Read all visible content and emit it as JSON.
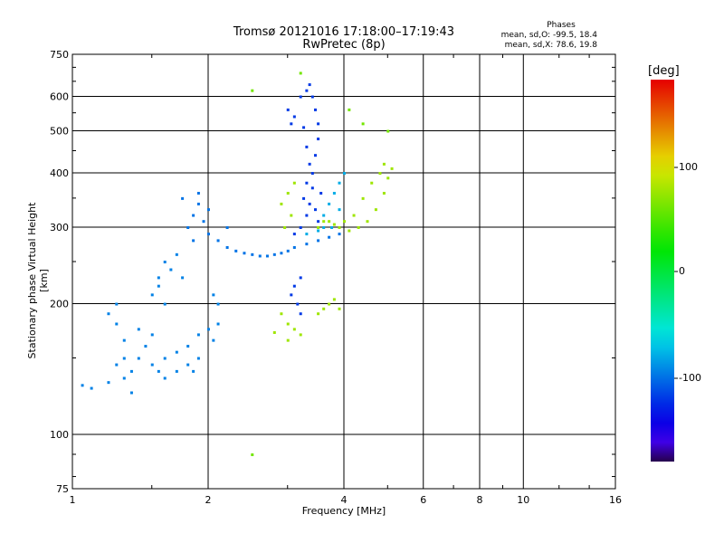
{
  "title_line1": "Tromsø 20121016 17:18:00–17:19:43",
  "title_line2": "RwPretec (8p)",
  "stats": {
    "heading": "Phases",
    "line_o": "mean, sd,O: -99.5, 18.4",
    "line_x": "mean, sd,X:  78.6, 19.8"
  },
  "colorbar": {
    "unit": "[deg]",
    "ticks": [
      "100",
      "0",
      "-100"
    ],
    "range": [
      -180,
      180
    ]
  },
  "chart_data": {
    "type": "scatter",
    "title": "Tromsø 20121016 17:18:00–17:19:43",
    "subtitle": "RwPretec (8p)",
    "xlabel": "Frequency [MHz]",
    "ylabel": "Stationary phase Virtual Height [km]",
    "xscale": "log",
    "yscale": "log",
    "xlim": [
      1,
      16
    ],
    "ylim": [
      75,
      750
    ],
    "x_ticks": [
      "1",
      "2",
      "4",
      "6",
      "8",
      "10",
      "16"
    ],
    "y_ticks": [
      "75",
      "100",
      "200",
      "300",
      "400",
      "500",
      "600",
      "750"
    ],
    "x_grid": [
      2,
      4,
      6,
      8,
      10
    ],
    "y_grid": [
      100,
      200,
      300,
      400,
      500,
      600
    ],
    "grid": true,
    "color_scale": "phase (deg), rainbow from -180 (black/purple) to 180 (red)",
    "series": [
      {
        "phase": -95,
        "points": [
          [
            1.05,
            130
          ],
          [
            1.1,
            128
          ],
          [
            1.2,
            132
          ],
          [
            1.3,
            135
          ],
          [
            1.35,
            140
          ],
          [
            1.4,
            150
          ],
          [
            1.5,
            145
          ],
          [
            1.55,
            140
          ],
          [
            1.6,
            150
          ],
          [
            1.7,
            155
          ],
          [
            1.8,
            160
          ],
          [
            1.9,
            170
          ],
          [
            2.0,
            175
          ],
          [
            2.05,
            165
          ],
          [
            2.1,
            180
          ],
          [
            1.45,
            160
          ],
          [
            1.5,
            170
          ],
          [
            1.4,
            175
          ],
          [
            1.3,
            165
          ],
          [
            1.25,
            180
          ],
          [
            1.2,
            190
          ],
          [
            1.25,
            200
          ],
          [
            1.5,
            210
          ],
          [
            1.55,
            230
          ],
          [
            1.6,
            250
          ],
          [
            1.65,
            240
          ],
          [
            1.7,
            260
          ],
          [
            1.75,
            230
          ],
          [
            1.6,
            200
          ],
          [
            1.55,
            220
          ],
          [
            1.3,
            150
          ],
          [
            1.35,
            125
          ],
          [
            1.25,
            145
          ],
          [
            1.6,
            135
          ],
          [
            1.7,
            140
          ],
          [
            1.8,
            145
          ],
          [
            2.1,
            200
          ],
          [
            2.05,
            210
          ],
          [
            1.9,
            150
          ],
          [
            1.85,
            140
          ]
        ]
      },
      {
        "phase": -100,
        "points": [
          [
            1.8,
            300
          ],
          [
            1.85,
            320
          ],
          [
            1.9,
            340
          ],
          [
            1.95,
            310
          ],
          [
            2.0,
            290
          ],
          [
            2.1,
            280
          ],
          [
            2.2,
            270
          ],
          [
            2.3,
            265
          ],
          [
            2.5,
            260
          ],
          [
            2.7,
            258
          ],
          [
            2.9,
            262
          ],
          [
            3.1,
            270
          ],
          [
            3.3,
            275
          ],
          [
            3.5,
            280
          ],
          [
            3.7,
            285
          ],
          [
            3.9,
            290
          ],
          [
            2.4,
            262
          ],
          [
            2.6,
            258
          ],
          [
            2.8,
            260
          ],
          [
            3.0,
            265
          ],
          [
            2.2,
            300
          ],
          [
            2.0,
            330
          ],
          [
            1.9,
            360
          ],
          [
            1.75,
            350
          ],
          [
            1.85,
            280
          ]
        ]
      },
      {
        "phase": -120,
        "points": [
          [
            3.2,
            600
          ],
          [
            3.3,
            620
          ],
          [
            3.35,
            640
          ],
          [
            3.4,
            600
          ],
          [
            3.45,
            560
          ],
          [
            3.5,
            520
          ],
          [
            3.5,
            480
          ],
          [
            3.45,
            440
          ],
          [
            3.4,
            400
          ],
          [
            3.4,
            370
          ],
          [
            3.35,
            340
          ],
          [
            3.3,
            320
          ],
          [
            3.2,
            300
          ],
          [
            3.1,
            290
          ],
          [
            3.0,
            560
          ],
          [
            3.05,
            520
          ],
          [
            3.1,
            540
          ],
          [
            3.25,
            510
          ],
          [
            3.3,
            460
          ],
          [
            3.35,
            420
          ],
          [
            3.3,
            380
          ],
          [
            3.25,
            350
          ],
          [
            3.45,
            330
          ],
          [
            3.5,
            310
          ],
          [
            3.55,
            360
          ],
          [
            3.2,
            230
          ],
          [
            3.1,
            220
          ],
          [
            3.05,
            210
          ],
          [
            3.15,
            200
          ],
          [
            3.2,
            190
          ]
        ]
      },
      {
        "phase": -80,
        "points": [
          [
            3.6,
            320
          ],
          [
            3.7,
            340
          ],
          [
            3.8,
            360
          ],
          [
            3.9,
            380
          ],
          [
            4.0,
            400
          ],
          [
            3.9,
            330
          ],
          [
            3.75,
            300
          ],
          [
            3.6,
            300
          ],
          [
            3.5,
            295
          ],
          [
            3.3,
            290
          ]
        ]
      },
      {
        "phase": 75,
        "points": [
          [
            2.9,
            340
          ],
          [
            3.0,
            360
          ],
          [
            3.05,
            320
          ],
          [
            2.95,
            300
          ],
          [
            3.1,
            380
          ],
          [
            3.5,
            300
          ],
          [
            3.7,
            310
          ],
          [
            3.9,
            300
          ],
          [
            4.1,
            295
          ],
          [
            4.3,
            300
          ],
          [
            4.5,
            310
          ],
          [
            4.7,
            330
          ],
          [
            4.9,
            360
          ],
          [
            5.0,
            390
          ],
          [
            4.8,
            400
          ],
          [
            4.6,
            380
          ],
          [
            4.4,
            350
          ],
          [
            4.2,
            320
          ],
          [
            4.0,
            310
          ],
          [
            3.8,
            305
          ],
          [
            3.6,
            310
          ],
          [
            4.9,
            420
          ],
          [
            5.1,
            410
          ],
          [
            2.9,
            190
          ],
          [
            3.0,
            180
          ],
          [
            3.1,
            175
          ],
          [
            3.2,
            170
          ],
          [
            3.0,
            165
          ],
          [
            2.8,
            172
          ],
          [
            3.5,
            190
          ],
          [
            3.7,
            200
          ],
          [
            3.9,
            195
          ],
          [
            3.8,
            205
          ],
          [
            3.6,
            195
          ]
        ]
      },
      {
        "phase": 60,
        "points": [
          [
            2.5,
            620
          ],
          [
            3.2,
            680
          ],
          [
            4.1,
            560
          ],
          [
            4.4,
            520
          ],
          [
            5.0,
            500
          ],
          [
            2.5,
            90
          ]
        ]
      }
    ]
  }
}
